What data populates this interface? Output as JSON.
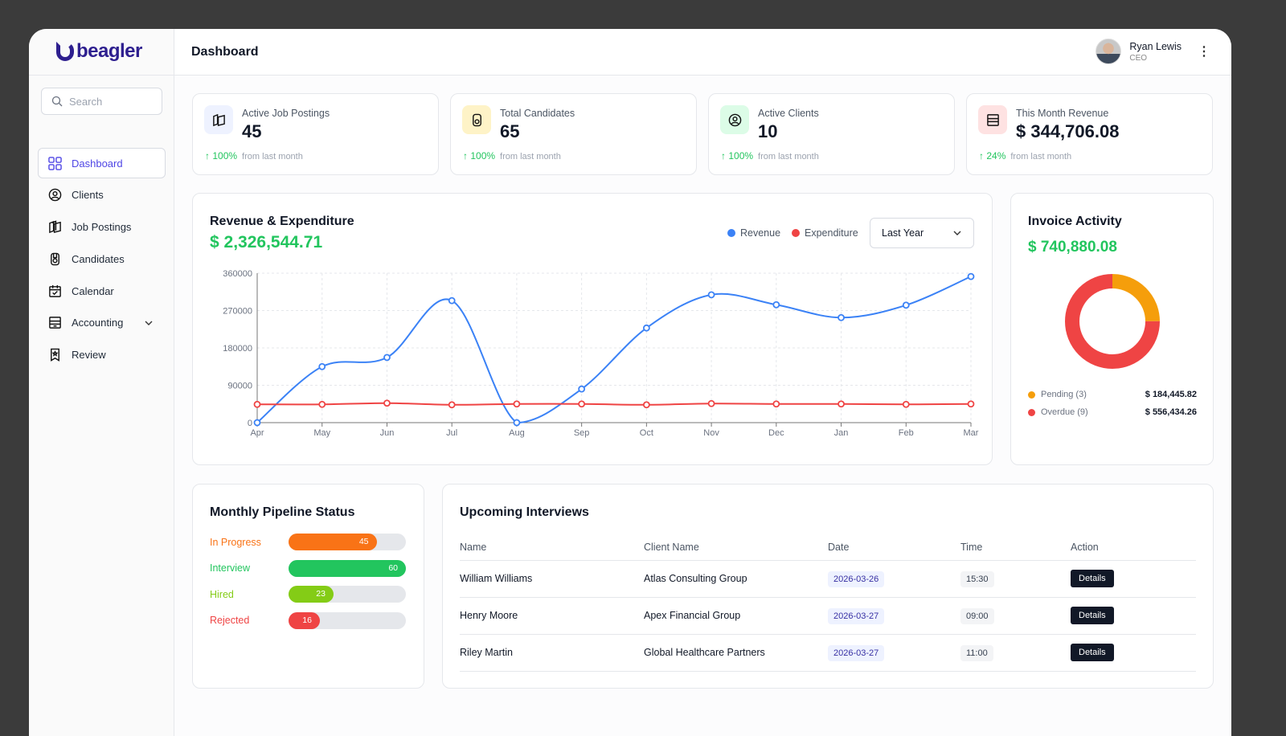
{
  "brand": {
    "name": "beagler",
    "color": "#2e1f8f"
  },
  "header": {
    "title": "Dashboard",
    "user_name": "Ryan Lewis",
    "user_role": "CEO"
  },
  "sidebar": {
    "search_placeholder": "Search",
    "items": [
      {
        "label": "Dashboard",
        "icon": "grid-icon",
        "active": true
      },
      {
        "label": "Clients",
        "icon": "user-circle-icon"
      },
      {
        "label": "Job Postings",
        "icon": "layers-icon"
      },
      {
        "label": "Candidates",
        "icon": "badge-icon"
      },
      {
        "label": "Calendar",
        "icon": "calendar-icon"
      },
      {
        "label": "Accounting",
        "icon": "archive-icon",
        "has_submenu": true
      },
      {
        "label": "Review",
        "icon": "bookmark-icon"
      }
    ]
  },
  "stats": [
    {
      "label": "Active Job Postings",
      "value": "45",
      "change": "100%",
      "change_note": "from last month",
      "icon_bg": "#eef2ff"
    },
    {
      "label": "Total Candidates",
      "value": "65",
      "change": "100%",
      "change_note": "from last month",
      "icon_bg": "#fef3c7"
    },
    {
      "label": "Active Clients",
      "value": "10",
      "change": "100%",
      "change_note": "from last month",
      "icon_bg": "#dcfce7"
    },
    {
      "label": "This Month Revenue",
      "value": "$ 344,706.08",
      "change": "24%",
      "change_note": "from last month",
      "icon_bg": "#fee2e2"
    }
  ],
  "revenue": {
    "title": "Revenue & Expenditure",
    "total": "$ 2,326,544.71",
    "period": "Last Year"
  },
  "chart_data": {
    "type": "line",
    "x": [
      "Apr",
      "May",
      "Jun",
      "Jul",
      "Aug",
      "Sep",
      "Oct",
      "Nov",
      "Dec",
      "Jan",
      "Feb",
      "Mar"
    ],
    "ylim": [
      0,
      360000
    ],
    "yticks": [
      "0",
      "90000",
      "180000",
      "270000",
      "360000"
    ],
    "grid": true,
    "legend": "top-right",
    "series": [
      {
        "name": "Revenue",
        "color": "#3b82f6",
        "values": [
          0,
          135000,
          157000,
          294000,
          0,
          81000,
          228000,
          308000,
          284000,
          253000,
          283000,
          352000
        ]
      },
      {
        "name": "Expenditure",
        "color": "#ef4444",
        "values": [
          44000,
          44000,
          47000,
          43000,
          45000,
          45000,
          43000,
          46000,
          45000,
          45000,
          44000,
          45000
        ]
      }
    ]
  },
  "invoice": {
    "title": "Invoice Activity",
    "total": "$ 740,880.08",
    "segments": [
      {
        "label": "Pending (3)",
        "amount": "$ 184,445.82",
        "value": 184445.82,
        "color": "#f59e0b"
      },
      {
        "label": "Overdue (9)",
        "amount": "$ 556,434.26",
        "value": 556434.26,
        "color": "#ef4444"
      }
    ]
  },
  "pipeline": {
    "title": "Monthly Pipeline Status",
    "max": 60,
    "items": [
      {
        "label": "In Progress",
        "value": 45,
        "color": "#f97316"
      },
      {
        "label": "Interview",
        "value": 60,
        "color": "#22c55e"
      },
      {
        "label": "Hired",
        "value": 23,
        "color": "#84cc16"
      },
      {
        "label": "Rejected",
        "value": 16,
        "color": "#ef4444"
      }
    ]
  },
  "interviews": {
    "title": "Upcoming Interviews",
    "columns": [
      "Name",
      "Client Name",
      "Date",
      "Time",
      "Action"
    ],
    "rows": [
      {
        "name": "William Williams",
        "client": "Atlas Consulting Group",
        "date": "2026-03-26",
        "time": "15:30",
        "action": "Details"
      },
      {
        "name": "Henry Moore",
        "client": "Apex Financial Group",
        "date": "2026-03-27",
        "time": "09:00",
        "action": "Details"
      },
      {
        "name": "Riley Martin",
        "client": "Global Healthcare Partners",
        "date": "2026-03-27",
        "time": "11:00",
        "action": "Details"
      }
    ]
  }
}
